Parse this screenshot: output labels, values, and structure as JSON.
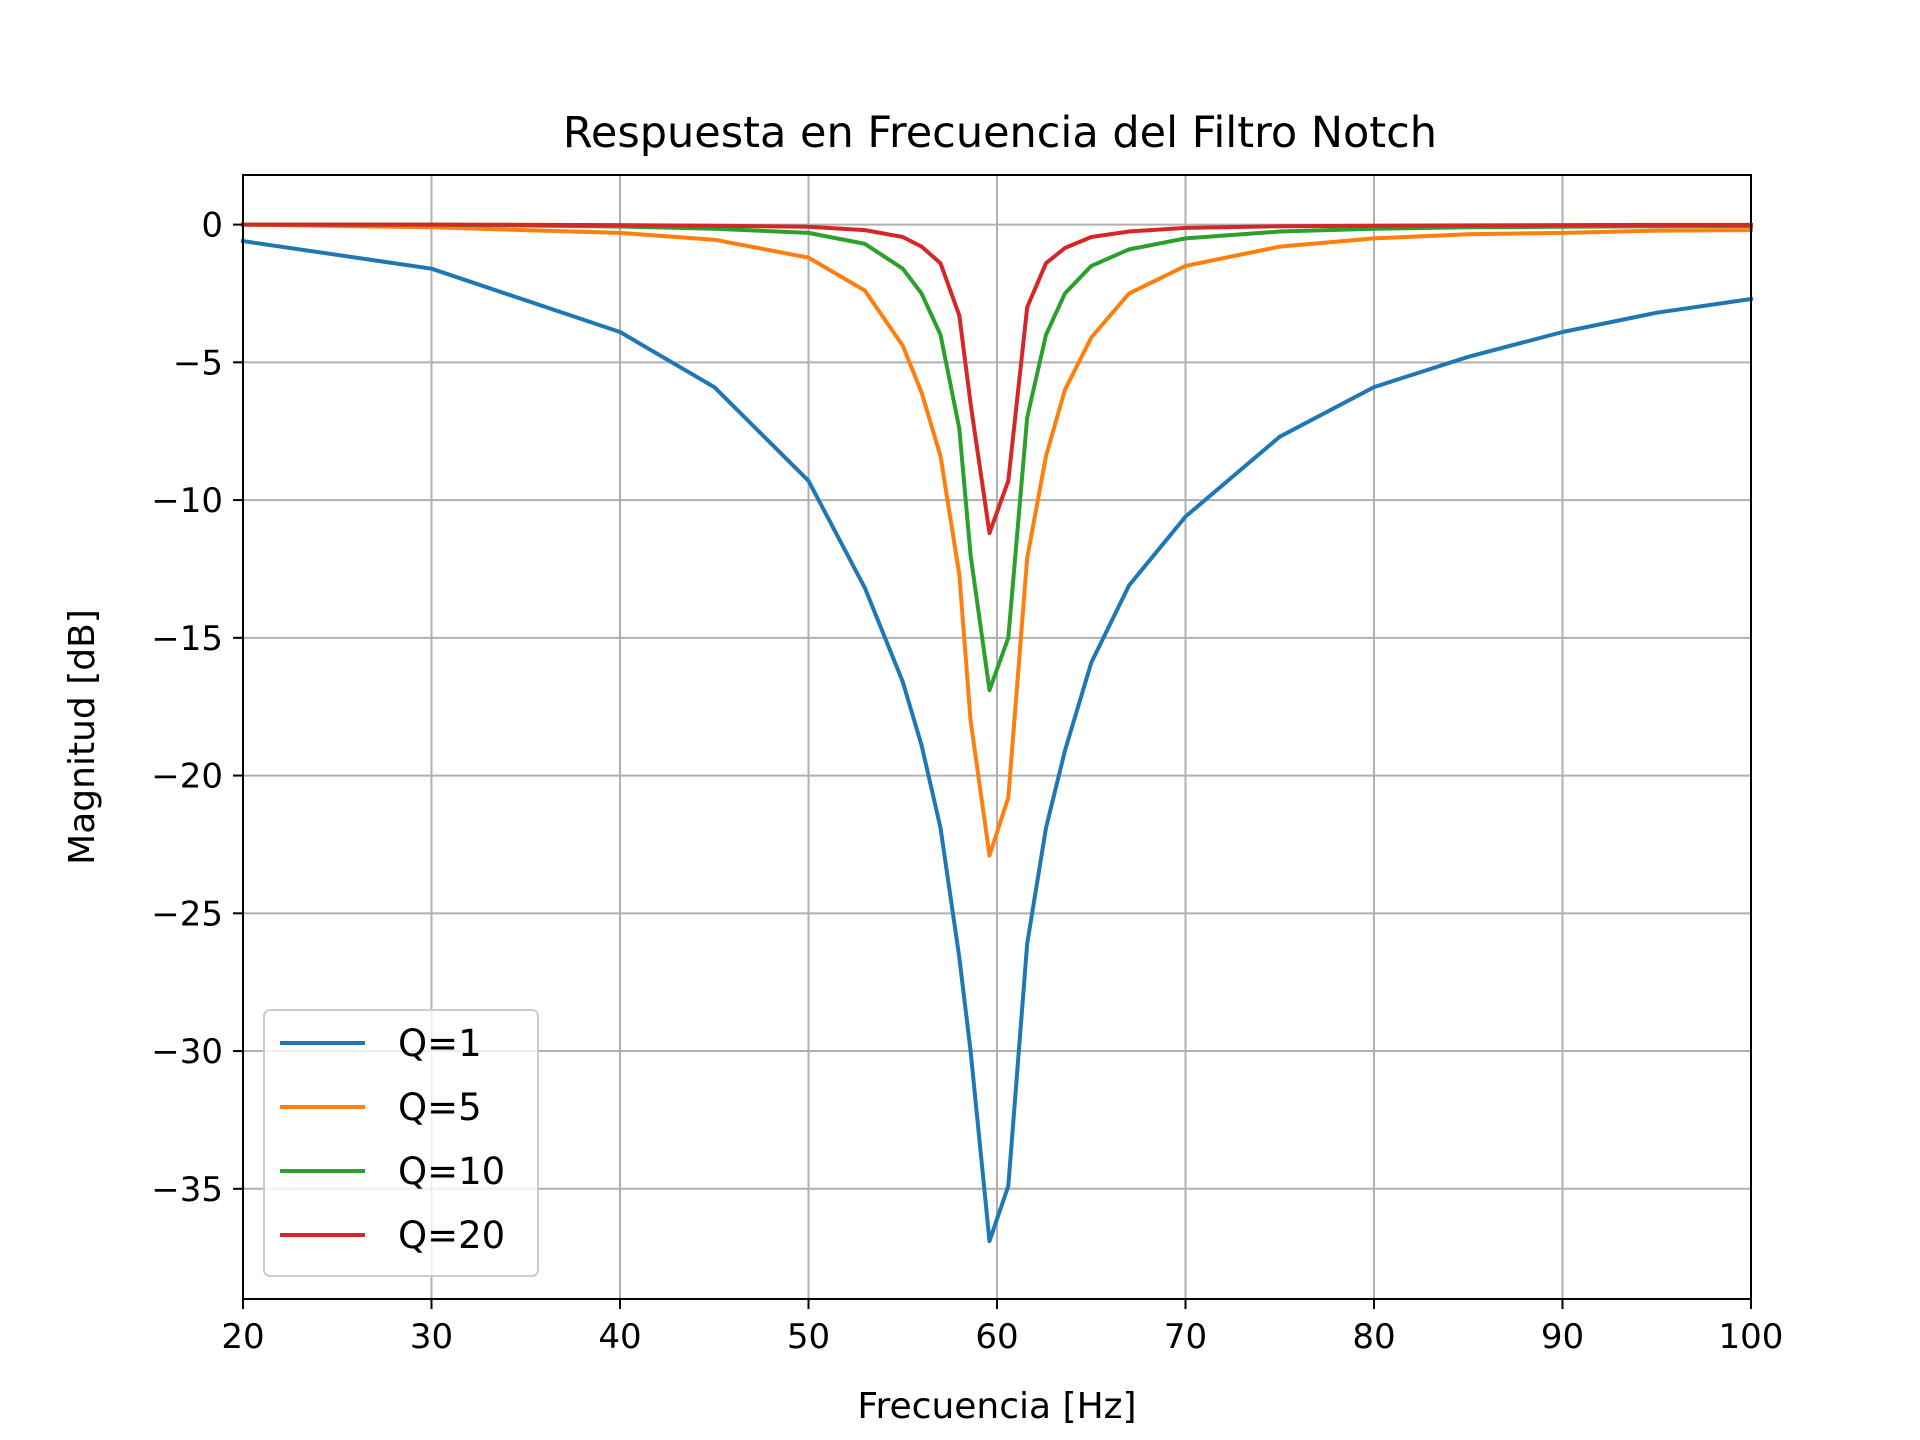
{
  "chart_data": {
    "type": "line",
    "title": "Respuesta en Frecuencia del Filtro Notch",
    "xlabel": "Frecuencia [Hz]",
    "ylabel": "Magnitud [dB]",
    "xlim": [
      20,
      100
    ],
    "ylim": [
      -39,
      1.8
    ],
    "xticks": [
      20,
      30,
      40,
      50,
      60,
      70,
      80,
      90,
      100
    ],
    "yticks": [
      0,
      -5,
      -10,
      -15,
      -20,
      -25,
      -30,
      -35
    ],
    "grid": true,
    "legend_position": "lower-left",
    "x": [
      20,
      30,
      40,
      45,
      50,
      53,
      55,
      56,
      57,
      58,
      58.6,
      59.6,
      60.6,
      61.6,
      62.6,
      63.6,
      65,
      67,
      70,
      75,
      80,
      85,
      90,
      95,
      100
    ],
    "series": [
      {
        "name": "Q=1",
        "color": "#1f77b4",
        "values": [
          -0.6,
          -1.6,
          -3.9,
          -5.9,
          -9.3,
          -13.2,
          -16.6,
          -18.9,
          -21.9,
          -26.6,
          -30.0,
          -36.9,
          -34.9,
          -26.1,
          -21.9,
          -19.1,
          -15.9,
          -13.1,
          -10.6,
          -7.7,
          -5.9,
          -4.8,
          -3.9,
          -3.2,
          -2.7
        ]
      },
      {
        "name": "Q=5",
        "color": "#ff7f0e",
        "values": [
          0.0,
          -0.1,
          -0.3,
          -0.55,
          -1.2,
          -2.4,
          -4.4,
          -6.1,
          -8.4,
          -12.7,
          -18.0,
          -22.9,
          -20.8,
          -12.1,
          -8.4,
          -6.0,
          -4.1,
          -2.5,
          -1.5,
          -0.8,
          -0.5,
          -0.35,
          -0.3,
          -0.22,
          -0.2
        ]
      },
      {
        "name": "Q=10",
        "color": "#2ca02c",
        "values": [
          0.0,
          0.0,
          -0.07,
          -0.15,
          -0.3,
          -0.7,
          -1.6,
          -2.5,
          -4.0,
          -7.4,
          -12.0,
          -16.9,
          -15.0,
          -7.0,
          -4.0,
          -2.5,
          -1.5,
          -0.9,
          -0.5,
          -0.25,
          -0.15,
          -0.1,
          -0.08,
          -0.06,
          -0.05
        ]
      },
      {
        "name": "Q=20",
        "color": "#d62728",
        "values": [
          0.0,
          0.0,
          -0.02,
          -0.04,
          -0.08,
          -0.2,
          -0.45,
          -0.8,
          -1.4,
          -3.3,
          -6.5,
          -11.2,
          -9.3,
          -3.0,
          -1.4,
          -0.85,
          -0.45,
          -0.25,
          -0.12,
          -0.06,
          -0.04,
          -0.03,
          -0.02,
          -0.01,
          -0.01
        ]
      }
    ]
  }
}
